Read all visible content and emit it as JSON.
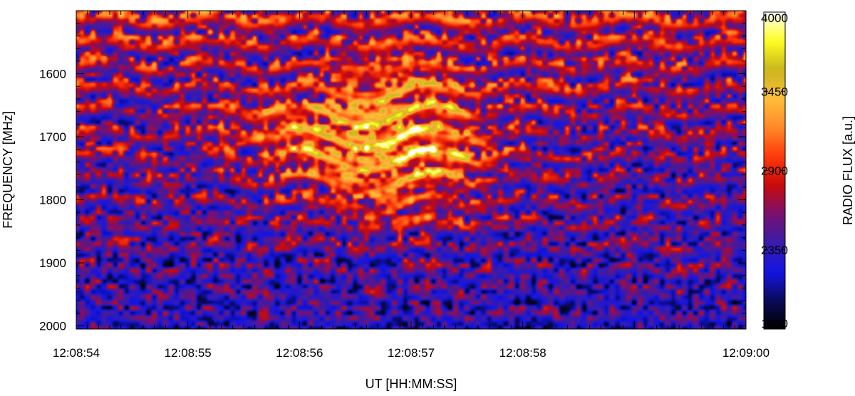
{
  "chart_data": {
    "type": "heatmap",
    "title": "",
    "xlabel": "UT [HH:MM:SS]",
    "ylabel": "FREQUENCY [MHz]",
    "x_start": "12:08:54",
    "x_end": "12:09:00",
    "x_ticks": [
      "12:08:54",
      "12:08:55",
      "12:08:56",
      "12:08:57",
      "12:08:58",
      "12:09:00"
    ],
    "y_range": [
      1500,
      2005
    ],
    "y_ticks": [
      1600,
      1700,
      1800,
      1900,
      2000
    ],
    "y_inverted": true,
    "colorbar": {
      "label": "RADIO FLUX [a.u.]",
      "range": [
        1800,
        4000
      ],
      "ticks": [
        1800,
        2350,
        2900,
        3450,
        4000
      ],
      "colormap": [
        "#000000",
        "#0a0a5a",
        "#1414e6",
        "#3a1ca8",
        "#7a1070",
        "#c80a0a",
        "#ff3a0a",
        "#ff8a2a",
        "#ffbe3a",
        "#c8b41e",
        "#ffff1e",
        "#ffffff"
      ]
    },
    "features": {
      "background_flux_high_freq": 2300,
      "background_flux_low_freq": 2750,
      "burst_peak_time": "12:08:56.9",
      "burst_peak_flux": 3900,
      "burst_frequency_range": [
        1560,
        1870
      ],
      "fiber_spacing_MHz": 36
    }
  }
}
